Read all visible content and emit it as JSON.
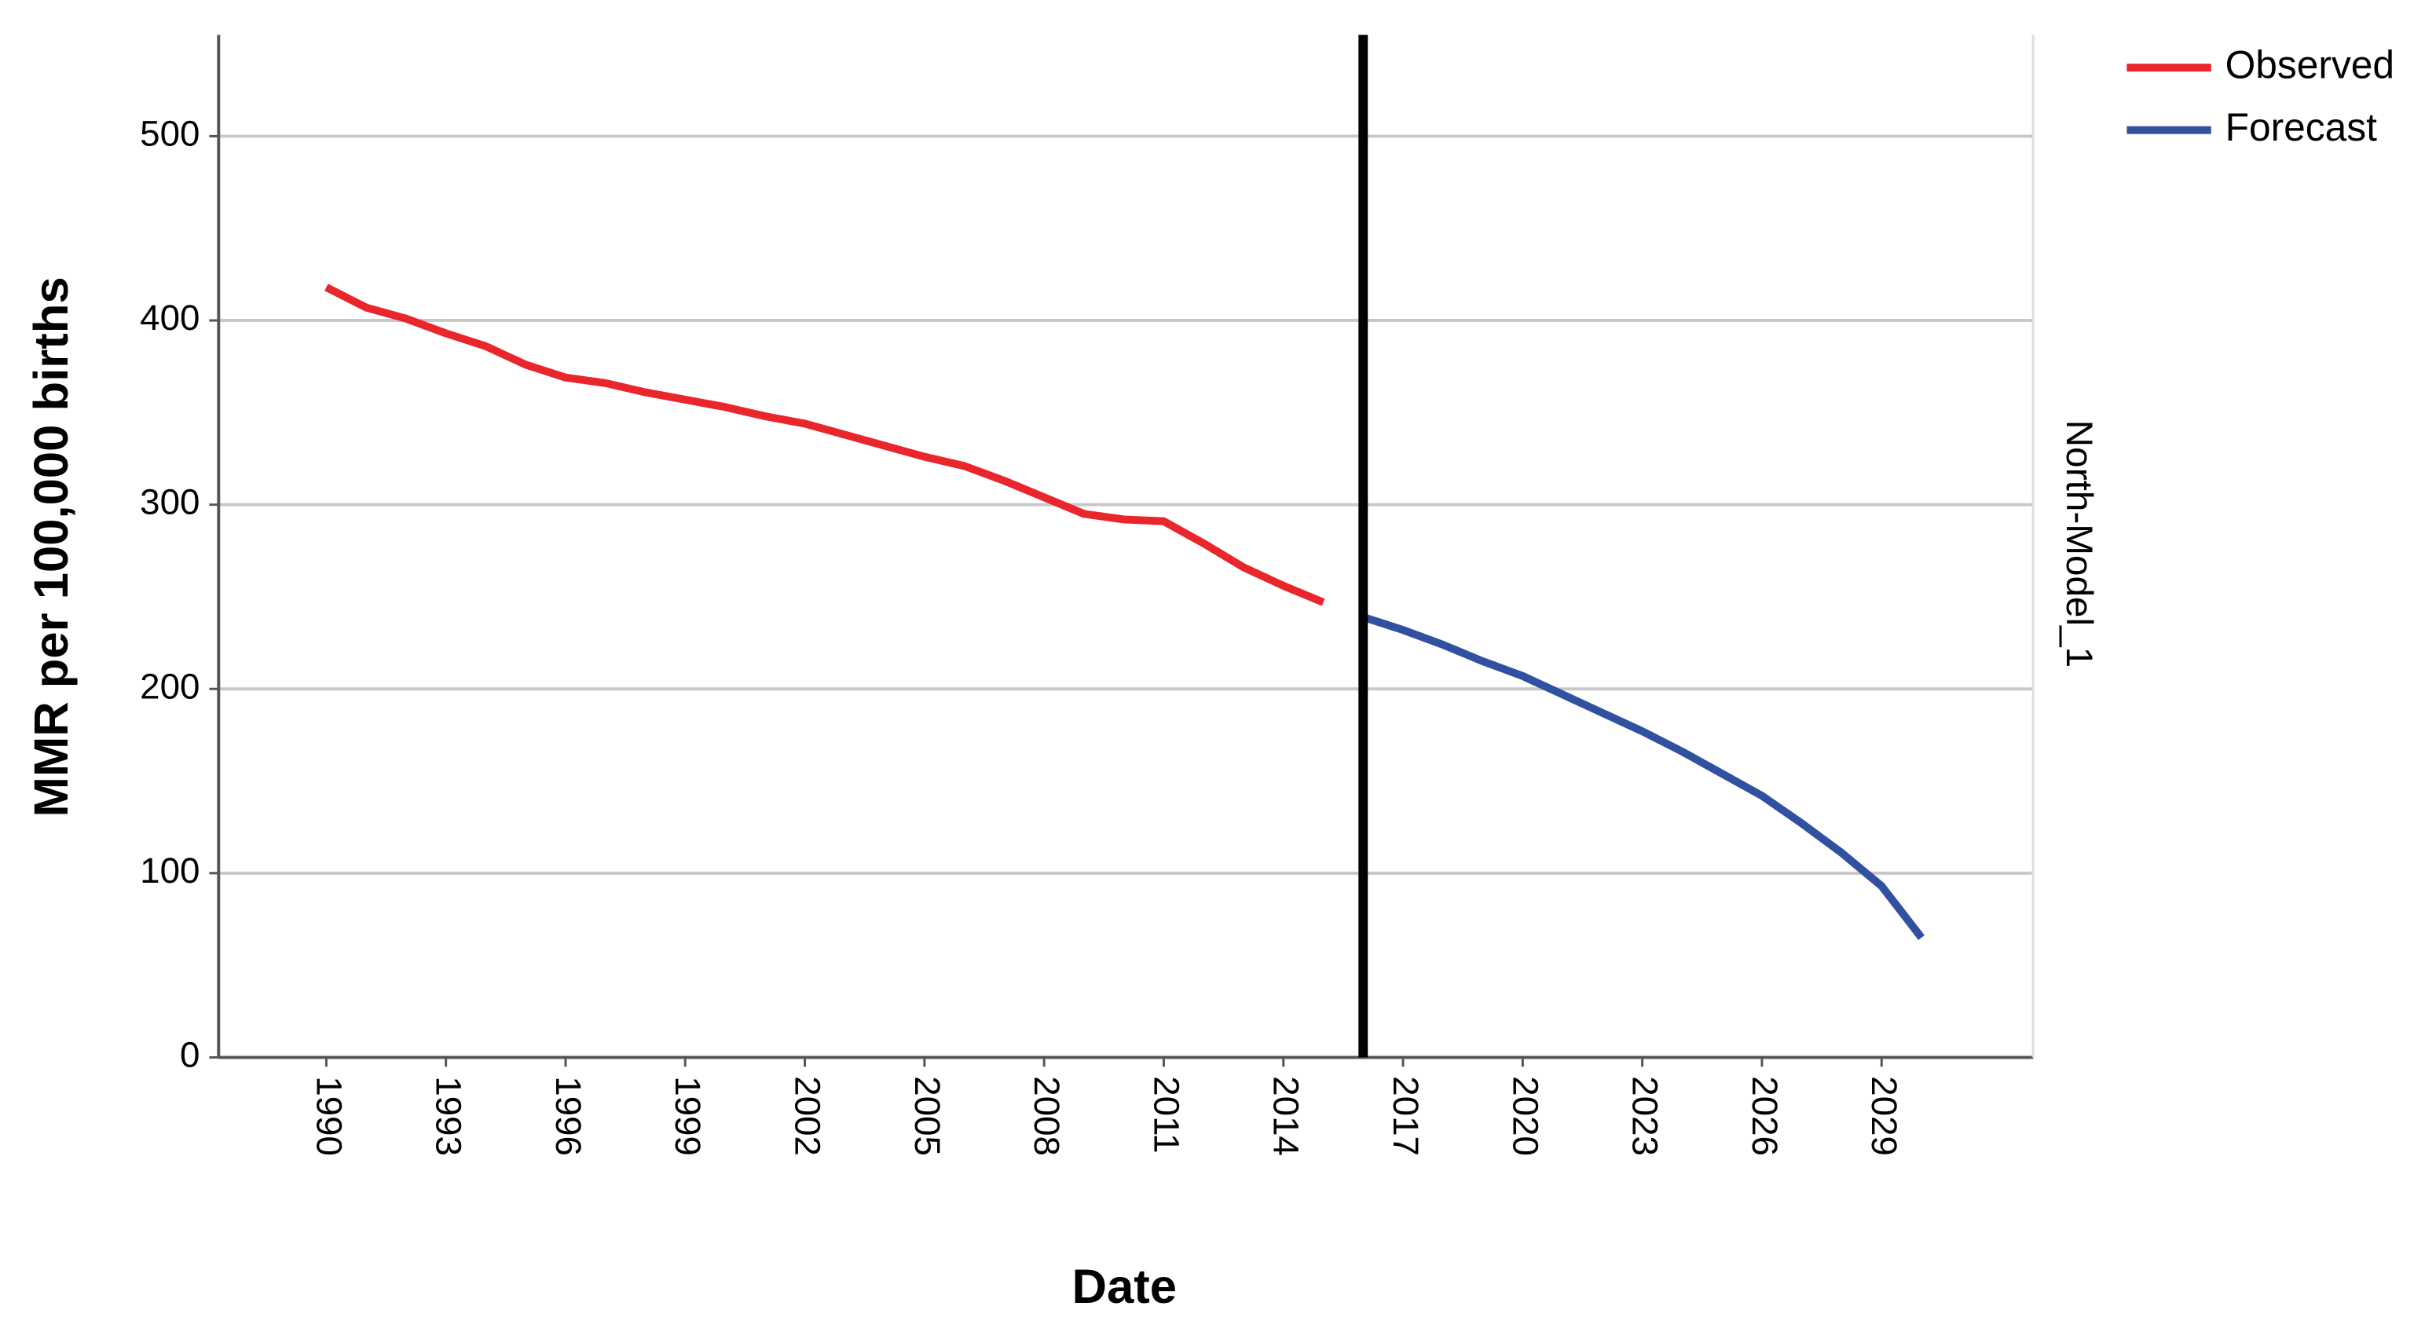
{
  "chart_data": {
    "type": "line",
    "x_label": "Date",
    "y_label": "MMR per 100,000 births",
    "panel_label": "North-Model_1",
    "x": [
      1990,
      1991,
      1992,
      1993,
      1994,
      1995,
      1996,
      1997,
      1998,
      1999,
      2000,
      2001,
      2002,
      2003,
      2004,
      2005,
      2006,
      2007,
      2008,
      2009,
      2010,
      2011,
      2012,
      2013,
      2014,
      2015,
      2016,
      2017,
      2018,
      2019,
      2020,
      2021,
      2022,
      2023,
      2024,
      2025,
      2026,
      2027,
      2028,
      2029,
      2030
    ],
    "series": [
      {
        "name": "Observed",
        "color": "#e8262c",
        "values": [
          418,
          407,
          401,
          393,
          386,
          376,
          369,
          366,
          361,
          357,
          353,
          348,
          344,
          338,
          332,
          326,
          321,
          313,
          304,
          295,
          292,
          291,
          279,
          266,
          256,
          247,
          null,
          null,
          null,
          null,
          null,
          null,
          null,
          null,
          null,
          null,
          null,
          null,
          null,
          null,
          null
        ]
      },
      {
        "name": "Forecast",
        "color": "#3050a0",
        "values": [
          null,
          null,
          null,
          null,
          null,
          null,
          null,
          null,
          null,
          null,
          null,
          null,
          null,
          null,
          null,
          null,
          null,
          null,
          null,
          null,
          null,
          null,
          null,
          null,
          null,
          null,
          239,
          232,
          224,
          215,
          207,
          197,
          187,
          177,
          166,
          154,
          142,
          127,
          111,
          93,
          65
        ]
      }
    ],
    "forecast_start": 2016,
    "xlim": [
      1987.3,
      2032.8
    ],
    "xticks": [
      1990,
      1993,
      1996,
      1999,
      2002,
      2005,
      2008,
      2011,
      2014,
      2017,
      2020,
      2023,
      2026,
      2029
    ],
    "ylim": [
      0,
      555
    ],
    "yticks": [
      0,
      100,
      200,
      300,
      400,
      500
    ],
    "grid": true,
    "legend": "top-right"
  }
}
